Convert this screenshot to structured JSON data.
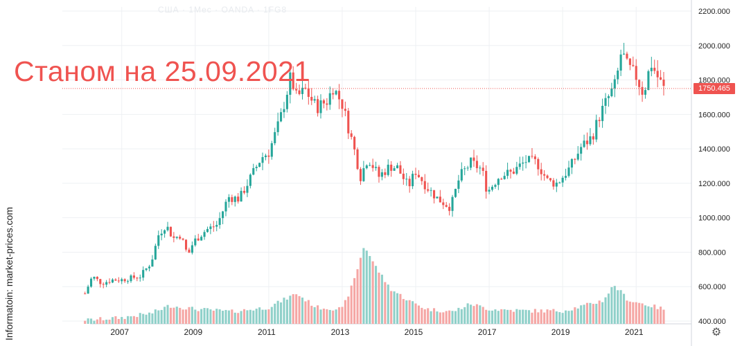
{
  "watermark": "США · 1Мес · OANDA · 1FG8",
  "overlay_title": "Станом на 25.09.2021",
  "credit": "Informatoin: market-prices.com",
  "settings_icon": "gear-icon",
  "colors": {
    "up": "#26a69a",
    "down": "#ef5350",
    "vol_up": "#8fd0c9",
    "vol_down": "#f5a6a4",
    "grid": "#eef0f3"
  },
  "chart_data": {
    "type": "candlestick",
    "title": "",
    "xlabel": "",
    "ylabel": "",
    "ylim": [
      400,
      2200
    ],
    "y_ticks": [
      "2200.000",
      "2000.000",
      "1800.000",
      "1600.000",
      "1400.000",
      "1200.000",
      "1000.000",
      "800.000",
      "600.000",
      "400.000"
    ],
    "x_ticks": [
      "2007",
      "2009",
      "2011",
      "2013",
      "2015",
      "2017",
      "2019",
      "2021"
    ],
    "x_range": [
      2006.0,
      2021.75
    ],
    "grid": true,
    "last_price_label": "1750.465",
    "last_price": 1750.465,
    "series": [
      {
        "kind": "price_ohlc_monthly_approx",
        "anchors": [
          [
            2006.0,
            560
          ],
          [
            2006.2,
            660
          ],
          [
            2006.45,
            620
          ],
          [
            2006.75,
            640
          ],
          [
            2007.0,
            640
          ],
          [
            2007.5,
            660
          ],
          [
            2007.8,
            740
          ],
          [
            2008.0,
            900
          ],
          [
            2008.2,
            960
          ],
          [
            2008.4,
            880
          ],
          [
            2008.6,
            900
          ],
          [
            2008.8,
            780
          ],
          [
            2008.95,
            860
          ],
          [
            2009.3,
            930
          ],
          [
            2009.6,
            960
          ],
          [
            2009.9,
            1120
          ],
          [
            2010.2,
            1110
          ],
          [
            2010.5,
            1230
          ],
          [
            2010.8,
            1350
          ],
          [
            2011.0,
            1380
          ],
          [
            2011.3,
            1560
          ],
          [
            2011.6,
            1820
          ],
          [
            2011.75,
            1700
          ],
          [
            2012.0,
            1740
          ],
          [
            2012.3,
            1640
          ],
          [
            2012.6,
            1680
          ],
          [
            2012.75,
            1760
          ],
          [
            2013.0,
            1660
          ],
          [
            2013.3,
            1420
          ],
          [
            2013.5,
            1240
          ],
          [
            2013.7,
            1350
          ],
          [
            2014.0,
            1240
          ],
          [
            2014.3,
            1300
          ],
          [
            2014.5,
            1290
          ],
          [
            2014.8,
            1180
          ],
          [
            2015.0,
            1270
          ],
          [
            2015.3,
            1180
          ],
          [
            2015.6,
            1110
          ],
          [
            2015.95,
            1060
          ],
          [
            2016.2,
            1240
          ],
          [
            2016.5,
            1320
          ],
          [
            2016.8,
            1280
          ],
          [
            2016.95,
            1150
          ],
          [
            2017.3,
            1250
          ],
          [
            2017.6,
            1260
          ],
          [
            2018.0,
            1330
          ],
          [
            2018.3,
            1320
          ],
          [
            2018.6,
            1210
          ],
          [
            2018.85,
            1200
          ],
          [
            2019.2,
            1290
          ],
          [
            2019.5,
            1410
          ],
          [
            2019.8,
            1470
          ],
          [
            2020.0,
            1590
          ],
          [
            2020.2,
            1680
          ],
          [
            2020.45,
            1780
          ],
          [
            2020.6,
            1970
          ],
          [
            2020.75,
            1880
          ],
          [
            2021.0,
            1820
          ],
          [
            2021.2,
            1720
          ],
          [
            2021.4,
            1900
          ],
          [
            2021.6,
            1810
          ],
          [
            2021.75,
            1750
          ]
        ]
      },
      {
        "kind": "volume_bars_approx",
        "anchors": [
          [
            2006.0,
            405
          ],
          [
            2007.0,
            420
          ],
          [
            2007.8,
            445
          ],
          [
            2008.3,
            490
          ],
          [
            2009.0,
            470
          ],
          [
            2010.0,
            455
          ],
          [
            2011.0,
            480
          ],
          [
            2011.75,
            560
          ],
          [
            2012.3,
            480
          ],
          [
            2013.0,
            470
          ],
          [
            2013.3,
            620
          ],
          [
            2013.6,
            840
          ],
          [
            2013.9,
            720
          ],
          [
            2014.3,
            590
          ],
          [
            2014.8,
            520
          ],
          [
            2015.3,
            470
          ],
          [
            2016.0,
            455
          ],
          [
            2016.5,
            500
          ],
          [
            2017.0,
            470
          ],
          [
            2018.0,
            460
          ],
          [
            2019.0,
            460
          ],
          [
            2019.6,
            490
          ],
          [
            2020.1,
            520
          ],
          [
            2020.4,
            610
          ],
          [
            2020.8,
            520
          ],
          [
            2021.2,
            500
          ],
          [
            2021.75,
            470
          ]
        ]
      }
    ]
  }
}
